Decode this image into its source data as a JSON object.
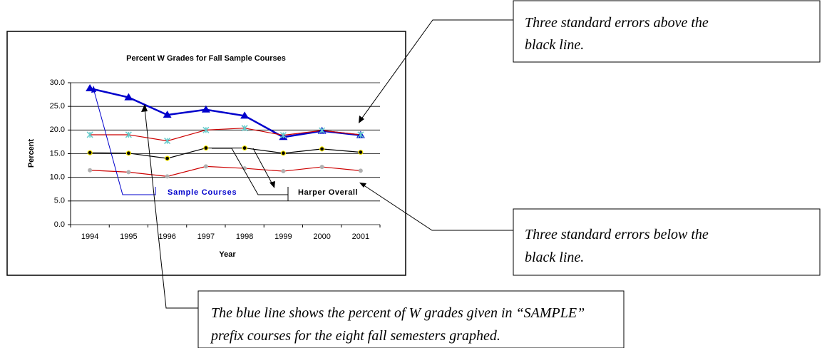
{
  "chart_data": {
    "type": "line",
    "title": "Percent W Grades for Fall Sample Courses",
    "x_label": "Year",
    "y_label": "Percent",
    "categories": [
      "1994",
      "1995",
      "1996",
      "1997",
      "1998",
      "1999",
      "2000",
      "2001"
    ],
    "series": [
      {
        "name": "Sample Courses",
        "color": "#0000cc",
        "marker": "triangle",
        "values": [
          28.8,
          26.9,
          23.2,
          24.3,
          23.0,
          18.5,
          19.8,
          18.9
        ]
      },
      {
        "color": "#cc0000",
        "marker": "x",
        "marker_color": "#66cccc",
        "values": [
          19.0,
          19.0,
          17.7,
          20.0,
          20.4,
          18.9,
          19.9,
          19.0
        ]
      },
      {
        "name": "Harper Overall",
        "color": "#000000",
        "marker": "dot",
        "marker_color": "#ffee00",
        "values": [
          15.2,
          15.1,
          14.0,
          16.2,
          16.2,
          15.1,
          16.0,
          15.3
        ]
      },
      {
        "color": "#cc0000",
        "marker": "dot",
        "marker_color": "#b0b0b0",
        "values": [
          11.5,
          11.1,
          10.2,
          12.3,
          11.9,
          11.3,
          12.2,
          11.4
        ]
      }
    ],
    "ylim": [
      0,
      30
    ],
    "yticks": [
      {
        "value": 0,
        "label": "0.0"
      },
      {
        "value": 5,
        "label": "5.0"
      },
      {
        "value": 10,
        "label": "10.0"
      },
      {
        "value": 15,
        "label": "15.0"
      },
      {
        "value": 20,
        "label": "20.0"
      },
      {
        "value": 25,
        "label": "25.0"
      },
      {
        "value": 30,
        "label": "30.0"
      }
    ],
    "grid": true
  },
  "callouts": [
    {
      "lines": [
        "Three standard errors above the",
        "black line."
      ]
    },
    {
      "lines": [
        "Three standard errors below the",
        "black line."
      ]
    },
    {
      "lines": [
        "The blue line shows the percent of W grades given in “SAMPLE”",
        "prefix courses for the eight fall semesters graphed."
      ]
    }
  ]
}
